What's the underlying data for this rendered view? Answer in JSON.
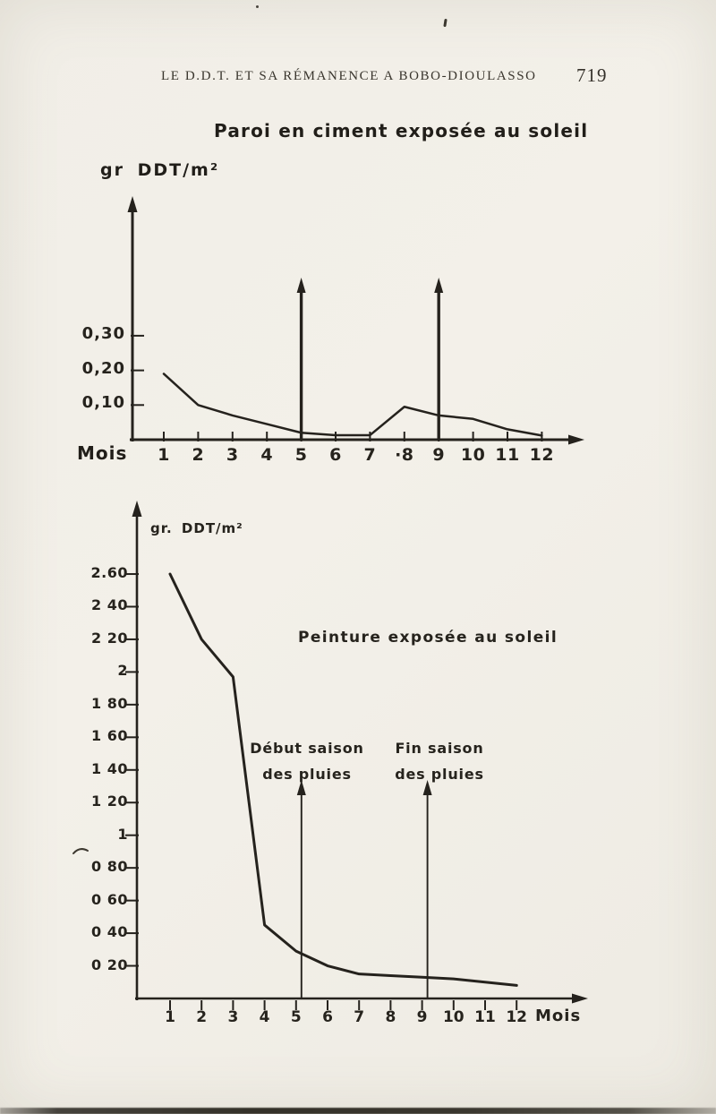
{
  "page": {
    "header_title": "LE D.D.T. ET SA RÉMANENCE A BOBO-DIOULASSO",
    "page_number": "719"
  },
  "colors": {
    "ink": "#25221d",
    "paper": "#f1eee7"
  },
  "chart_data": [
    {
      "type": "line",
      "title": "Paroi en ciment exposée au soleil",
      "ylabel": "gr DDT/m²",
      "xlabel": "Mois",
      "x": [
        1,
        2,
        3,
        4,
        5,
        6,
        7,
        8,
        9,
        10,
        11,
        12
      ],
      "x_tick_labels": [
        "1",
        "2",
        "3",
        "4",
        "5",
        "6",
        "7",
        "·8",
        "9",
        "10",
        "11",
        "12"
      ],
      "values": [
        0.19,
        0.1,
        0.07,
        0.045,
        0.02,
        0.013,
        0.013,
        0.095,
        0.07,
        0.06,
        0.03,
        0.012
      ],
      "y_ticks": [
        {
          "value": 0.1,
          "label": "0,10"
        },
        {
          "value": 0.2,
          "label": "0,20"
        },
        {
          "value": 0.3,
          "label": "0,30"
        }
      ],
      "xlim": [
        0,
        13
      ],
      "ylim": [
        0,
        0.7
      ],
      "grid": false,
      "legend": "none",
      "event_arrows": [
        {
          "month": 5
        },
        {
          "month": 9
        }
      ]
    },
    {
      "type": "line",
      "title": "Peinture exposée au soleil",
      "ylabel": "gr. DDT/m²",
      "xlabel": "Mois",
      "x": [
        1,
        2,
        3,
        4,
        5,
        6,
        7,
        8,
        9,
        10,
        11,
        12
      ],
      "x_tick_labels": [
        "1",
        "2",
        "3",
        "4",
        "5",
        "6",
        "7",
        "8",
        "9",
        "10",
        "11",
        "12"
      ],
      "values": [
        2.6,
        2.2,
        1.97,
        0.45,
        0.29,
        0.2,
        0.15,
        0.14,
        0.13,
        0.12,
        0.1,
        0.08
      ],
      "y_ticks": [
        {
          "value": 2.6,
          "label": "2.60"
        },
        {
          "value": 2.4,
          "label": "2 40"
        },
        {
          "value": 2.2,
          "label": "2 20"
        },
        {
          "value": 2.0,
          "label": "2"
        },
        {
          "value": 1.8,
          "label": "1 80"
        },
        {
          "value": 1.6,
          "label": "1 60"
        },
        {
          "value": 1.4,
          "label": "1 40"
        },
        {
          "value": 1.2,
          "label": "1 20"
        },
        {
          "value": 1.0,
          "label": "1"
        },
        {
          "value": 0.8,
          "label": "0 80"
        },
        {
          "value": 0.6,
          "label": "0 60"
        },
        {
          "value": 0.4,
          "label": "0 40"
        },
        {
          "value": 0.2,
          "label": "0 20"
        }
      ],
      "xlim": [
        0,
        13
      ],
      "ylim": [
        0,
        3.0
      ],
      "grid": false,
      "legend": "none",
      "event_arrows": [
        {
          "month": 5,
          "label_lines": [
            "Début saison",
            "des pluies"
          ]
        },
        {
          "month": 9,
          "label_lines": [
            "Fin saison",
            "des pluies"
          ]
        }
      ]
    }
  ]
}
